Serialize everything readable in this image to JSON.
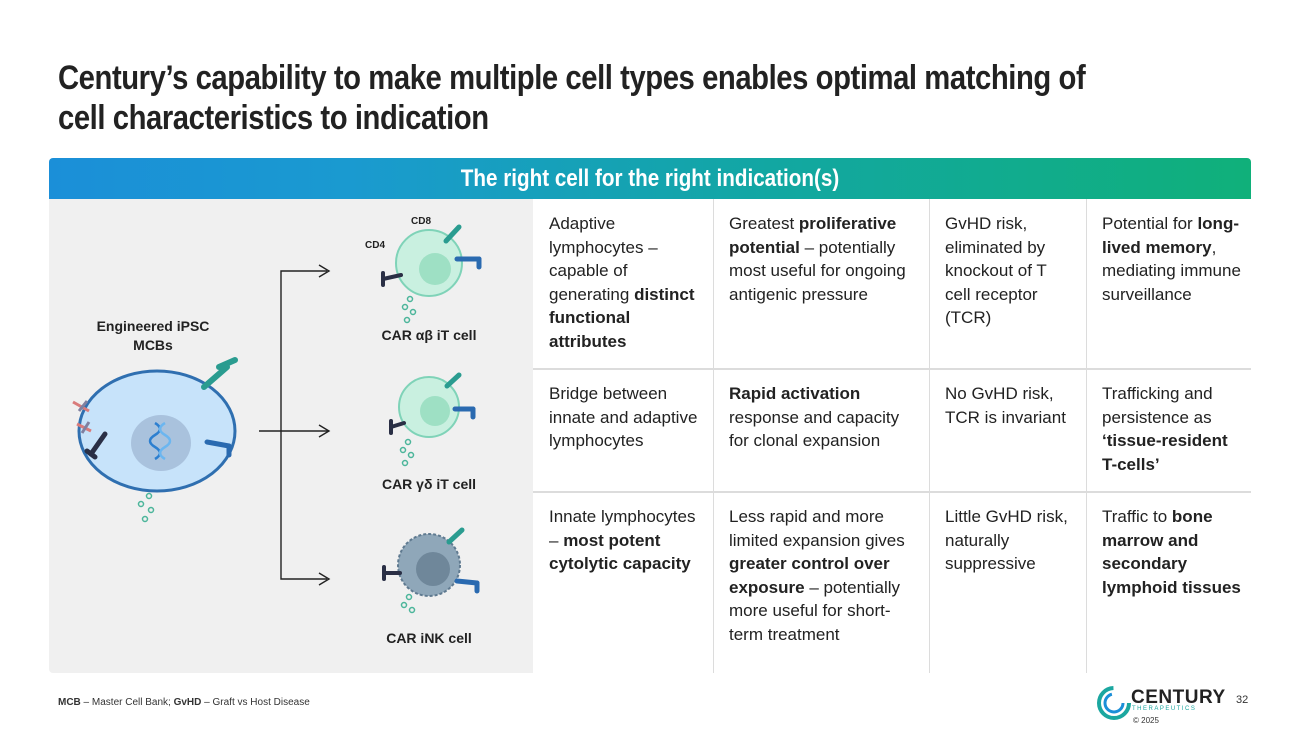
{
  "slide": {
    "title": "Century’s capability to make multiple cell types enables optimal matching of cell characteristics to indication",
    "banner": "The right cell for the right indication(s)"
  },
  "diagram": {
    "source_label": "Engineered iPSC MCBs",
    "cd8_label": "CD8",
    "cd4_label": "CD4",
    "cells": [
      "CAR αβ iT cell",
      "CAR γδ iT cell",
      "CAR iNK cell"
    ]
  },
  "table": {
    "rows": [
      [
        [
          {
            "t": "Adaptive lymphocytes – capable of generating "
          },
          {
            "t": "distinct functional attributes",
            "b": true
          }
        ],
        [
          {
            "t": "Greatest "
          },
          {
            "t": "proliferative potential",
            "b": true
          },
          {
            "t": " – potentially most useful for ongoing antigenic pressure"
          }
        ],
        [
          {
            "t": "GvHD risk, eliminated by knockout of T cell receptor (TCR)"
          }
        ],
        [
          {
            "t": "Potential for "
          },
          {
            "t": "long-lived memory",
            "b": true
          },
          {
            "t": ", mediating immune surveillance"
          }
        ]
      ],
      [
        [
          {
            "t": "Bridge between innate and adaptive lymphocytes"
          }
        ],
        [
          {
            "t": "Rapid activation",
            "b": true
          },
          {
            "t": " response and capacity for clonal expansion"
          }
        ],
        [
          {
            "t": "No GvHD risk, TCR is invariant"
          }
        ],
        [
          {
            "t": "Trafficking and persistence as "
          },
          {
            "t": "‘tissue-resident T-cells’",
            "b": true
          }
        ]
      ],
      [
        [
          {
            "t": "Innate lymphocytes – "
          },
          {
            "t": "most potent cytolytic capacity",
            "b": true
          }
        ],
        [
          {
            "t": "Less rapid and more limited expansion gives "
          },
          {
            "t": "greater control over exposure",
            "b": true
          },
          {
            "t": " – potentially more useful for short-term treatment"
          }
        ],
        [
          {
            "t": "Little GvHD risk, naturally suppressive"
          }
        ],
        [
          {
            "t": "Traffic to "
          },
          {
            "t": "bone marrow and secondary lymphoid tissues",
            "b": true
          }
        ]
      ]
    ]
  },
  "footer": {
    "abbr1": "MCB",
    "def1": " – Master Cell Bank; ",
    "abbr2": "GvHD",
    "def2": " – Graft vs Host Disease",
    "logo_name": "CENTURY",
    "logo_sub": "THERAPEUTICS",
    "copyright": "© 2025",
    "page": "32"
  },
  "colors": {
    "banner_start": "#1b8fd8",
    "banner_end": "#10b07a",
    "panel_bg": "#f0f0f0",
    "ipsc_cell": "#c7e3fa",
    "t_cell": "#c9f0e0",
    "nk_cell": "#8fa7b9"
  }
}
